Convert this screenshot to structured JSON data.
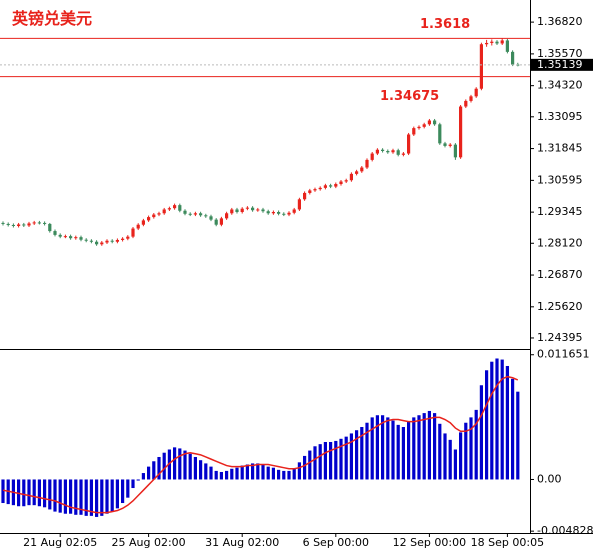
{
  "chart_data": {
    "type": "candlestick",
    "title": "英镑兑美元",
    "up_color": "#e8231c",
    "down_color": "#3c8a5c",
    "ylim": [
      1.24,
      1.3769
    ],
    "yticks": [
      {
        "value": 1.3682,
        "label": "1.36820"
      },
      {
        "value": 1.3557,
        "label": "1.35570"
      },
      {
        "value": 1.3432,
        "label": "1.34320"
      },
      {
        "value": 1.33095,
        "label": "1.33095"
      },
      {
        "value": 1.31845,
        "label": "1.31845"
      },
      {
        "value": 1.30595,
        "label": "1.30595"
      },
      {
        "value": 1.29345,
        "label": "1.29345"
      },
      {
        "value": 1.2812,
        "label": "1.28120"
      },
      {
        "value": 1.2687,
        "label": "1.26870"
      },
      {
        "value": 1.2562,
        "label": "1.25620"
      },
      {
        "value": 1.24395,
        "label": "1.24395"
      }
    ],
    "levels": [
      1.3618,
      1.34675
    ],
    "level_color": "#e8231c",
    "last_price": 1.35139,
    "x": [
      null,
      null,
      null,
      null,
      null,
      null,
      null,
      null,
      null,
      null,
      null,
      "21 Aug 02:05",
      null,
      null,
      null,
      null,
      null,
      null,
      null,
      null,
      null,
      null,
      null,
      null,
      null,
      null,
      null,
      null,
      "25 Aug 02:00",
      null,
      null,
      null,
      null,
      null,
      null,
      null,
      null,
      null,
      null,
      null,
      null,
      null,
      null,
      null,
      null,
      null,
      "31 Aug 02:00",
      null,
      null,
      null,
      null,
      null,
      null,
      null,
      null,
      null,
      null,
      null,
      null,
      null,
      null,
      null,
      null,
      null,
      "6 Sep 00:00",
      null,
      null,
      null,
      null,
      null,
      null,
      null,
      null,
      null,
      null,
      null,
      null,
      null,
      null,
      null,
      null,
      null,
      "12 Sep 00:00",
      null,
      null,
      null,
      null,
      null,
      null,
      null,
      null,
      null,
      null,
      null,
      null,
      null,
      null,
      "18 Sep 00:05",
      null,
      null
    ],
    "ohlc": [
      [
        1.2892,
        1.2898,
        1.2882,
        1.2888
      ],
      [
        1.2888,
        1.2894,
        1.2878,
        1.2884
      ],
      [
        1.2884,
        1.289,
        1.2874,
        1.288
      ],
      [
        1.288,
        1.2892,
        1.2874,
        1.2886
      ],
      [
        1.2886,
        1.2892,
        1.2876,
        1.2882
      ],
      [
        1.2882,
        1.2896,
        1.2876,
        1.289
      ],
      [
        1.289,
        1.29,
        1.2884,
        1.2894
      ],
      [
        1.2894,
        1.29,
        1.2886,
        1.2892
      ],
      [
        1.2892,
        1.2898,
        1.2882,
        1.2888
      ],
      [
        1.2888,
        1.2892,
        1.2854,
        1.286
      ],
      [
        1.286,
        1.2866,
        1.2839,
        1.2845
      ],
      [
        1.2845,
        1.2851,
        1.2832,
        1.2838
      ],
      [
        1.2838,
        1.2846,
        1.2832,
        1.284
      ],
      [
        1.284,
        1.2846,
        1.2826,
        1.2832
      ],
      [
        1.2832,
        1.2842,
        1.2826,
        1.2836
      ],
      [
        1.2836,
        1.2842,
        1.282,
        1.2826
      ],
      [
        1.2826,
        1.2832,
        1.2816,
        1.2822
      ],
      [
        1.2822,
        1.2828,
        1.2812,
        1.2818
      ],
      [
        1.2818,
        1.2824,
        1.2802,
        1.2808
      ],
      [
        1.2808,
        1.2821,
        1.2802,
        1.2815
      ],
      [
        1.2815,
        1.2828,
        1.2809,
        1.2822
      ],
      [
        1.2822,
        1.2828,
        1.2812,
        1.2818
      ],
      [
        1.2818,
        1.2831,
        1.2812,
        1.2825
      ],
      [
        1.2825,
        1.2836,
        1.2819,
        1.283
      ],
      [
        1.283,
        1.2844,
        1.2824,
        1.2838
      ],
      [
        1.2838,
        1.2876,
        1.2832,
        1.287
      ],
      [
        1.287,
        1.2891,
        1.2864,
        1.2885
      ],
      [
        1.2885,
        1.2908,
        1.2879,
        1.2902
      ],
      [
        1.2902,
        1.2921,
        1.2896,
        1.2915
      ],
      [
        1.2915,
        1.2931,
        1.2909,
        1.2925
      ],
      [
        1.2925,
        1.2936,
        1.2919,
        1.293
      ],
      [
        1.293,
        1.2951,
        1.2924,
        1.2945
      ],
      [
        1.2945,
        1.2956,
        1.2939,
        1.295
      ],
      [
        1.295,
        1.2968,
        1.2944,
        1.2962
      ],
      [
        1.2962,
        1.2968,
        1.2934,
        1.294
      ],
      [
        1.294,
        1.2946,
        1.2922,
        1.2928
      ],
      [
        1.2928,
        1.2934,
        1.2919,
        1.2925
      ],
      [
        1.2925,
        1.2936,
        1.2919,
        1.293
      ],
      [
        1.293,
        1.2936,
        1.2916,
        1.2922
      ],
      [
        1.2922,
        1.2928,
        1.2912,
        1.2918
      ],
      [
        1.2918,
        1.2924,
        1.2899,
        1.2905
      ],
      [
        1.2905,
        1.2911,
        1.2879,
        1.2885
      ],
      [
        1.2885,
        1.2916,
        1.2879,
        1.291
      ],
      [
        1.291,
        1.2936,
        1.2904,
        1.293
      ],
      [
        1.293,
        1.2951,
        1.2924,
        1.2945
      ],
      [
        1.2945,
        1.2951,
        1.2929,
        1.2935
      ],
      [
        1.2935,
        1.2954,
        1.2929,
        1.2948
      ],
      [
        1.2948,
        1.2958,
        1.2942,
        1.2952
      ],
      [
        1.2952,
        1.2958,
        1.2936,
        1.2942
      ],
      [
        1.2942,
        1.2951,
        1.2936,
        1.2945
      ],
      [
        1.2945,
        1.2951,
        1.2932,
        1.2938
      ],
      [
        1.2938,
        1.2944,
        1.2924,
        1.293
      ],
      [
        1.293,
        1.2941,
        1.2924,
        1.2935
      ],
      [
        1.2935,
        1.2941,
        1.2922,
        1.2928
      ],
      [
        1.2928,
        1.2934,
        1.2919,
        1.2925
      ],
      [
        1.2925,
        1.2938,
        1.2919,
        1.2932
      ],
      [
        1.2932,
        1.2951,
        1.2926,
        1.2945
      ],
      [
        1.2945,
        1.2991,
        1.2939,
        1.2985
      ],
      [
        1.2985,
        1.3016,
        1.2979,
        1.301
      ],
      [
        1.301,
        1.3026,
        1.3004,
        1.302
      ],
      [
        1.302,
        1.3031,
        1.3014,
        1.3025
      ],
      [
        1.3025,
        1.3036,
        1.3019,
        1.303
      ],
      [
        1.303,
        1.3046,
        1.3024,
        1.304
      ],
      [
        1.304,
        1.3046,
        1.3029,
        1.3035
      ],
      [
        1.3035,
        1.3051,
        1.3029,
        1.3045
      ],
      [
        1.3045,
        1.3061,
        1.3039,
        1.3055
      ],
      [
        1.3055,
        1.3066,
        1.3049,
        1.306
      ],
      [
        1.306,
        1.3091,
        1.3054,
        1.3085
      ],
      [
        1.3085,
        1.3101,
        1.3079,
        1.3095
      ],
      [
        1.3095,
        1.3116,
        1.3089,
        1.311
      ],
      [
        1.311,
        1.3146,
        1.3104,
        1.314
      ],
      [
        1.314,
        1.3171,
        1.3134,
        1.3165
      ],
      [
        1.3165,
        1.3186,
        1.3159,
        1.318
      ],
      [
        1.318,
        1.3186,
        1.3169,
        1.3175
      ],
      [
        1.3175,
        1.3181,
        1.3164,
        1.317
      ],
      [
        1.317,
        1.3184,
        1.3164,
        1.3178
      ],
      [
        1.3178,
        1.3184,
        1.3154,
        1.316
      ],
      [
        1.316,
        1.3171,
        1.3154,
        1.3165
      ],
      [
        1.3165,
        1.3246,
        1.3159,
        1.324
      ],
      [
        1.324,
        1.3271,
        1.3234,
        1.3265
      ],
      [
        1.3265,
        1.3276,
        1.3259,
        1.327
      ],
      [
        1.327,
        1.3286,
        1.3264,
        1.328
      ],
      [
        1.328,
        1.3301,
        1.3274,
        1.3295
      ],
      [
        1.3295,
        1.3301,
        1.3274,
        1.328
      ],
      [
        1.328,
        1.3286,
        1.3199,
        1.3205
      ],
      [
        1.3205,
        1.3211,
        1.3189,
        1.3195
      ],
      [
        1.3195,
        1.3206,
        1.3189,
        1.32
      ],
      [
        1.32,
        1.3206,
        1.314,
        1.315
      ],
      [
        1.315,
        1.3356,
        1.3144,
        1.335
      ],
      [
        1.335,
        1.3378,
        1.3344,
        1.3372
      ],
      [
        1.3372,
        1.3396,
        1.3366,
        1.339
      ],
      [
        1.339,
        1.3426,
        1.3384,
        1.342
      ],
      [
        1.342,
        1.3601,
        1.3414,
        1.3595
      ],
      [
        1.3595,
        1.3612,
        1.3585,
        1.36
      ],
      [
        1.36,
        1.3614,
        1.359,
        1.3605
      ],
      [
        1.3605,
        1.3611,
        1.3592,
        1.3598
      ],
      [
        1.3598,
        1.3618,
        1.3592,
        1.361
      ],
      [
        1.361,
        1.3616,
        1.3559,
        1.3565
      ],
      [
        1.3565,
        1.3571,
        1.3509,
        1.3515
      ],
      [
        1.3515,
        1.3522,
        1.3508,
        1.3514
      ]
    ],
    "indicator": {
      "type": "macd",
      "ylim": [
        -0.005,
        0.012
      ],
      "yticks": [
        0.011651,
        {
          "value": 0,
          "label": "0.00"
        },
        -0.004828
      ],
      "histogram_color": "#0000cc",
      "signal_color": "#e8231c",
      "histogram": [
        -0.0022,
        -0.0023,
        -0.0024,
        -0.0025,
        -0.0025,
        -0.0024,
        -0.0024,
        -0.0025,
        -0.0026,
        -0.0028,
        -0.003,
        -0.0031,
        -0.0032,
        -0.0032,
        -0.0033,
        -0.0033,
        -0.0034,
        -0.0034,
        -0.0035,
        -0.0034,
        -0.0032,
        -0.003,
        -0.0027,
        -0.0022,
        -0.0017,
        -0.0008,
        -0.0001,
        0.0006,
        0.0012,
        0.0017,
        0.0021,
        0.0025,
        0.0028,
        0.003,
        0.0029,
        0.0027,
        0.0024,
        0.0021,
        0.0018,
        0.0015,
        0.0012,
        0.0008,
        0.0007,
        0.0008,
        0.001,
        0.0011,
        0.0013,
        0.0014,
        0.0015,
        0.0015,
        0.0014,
        0.0012,
        0.0011,
        0.0009,
        0.0008,
        0.0008,
        0.001,
        0.0016,
        0.0022,
        0.0027,
        0.0031,
        0.0033,
        0.0035,
        0.0035,
        0.0036,
        0.0038,
        0.004,
        0.0043,
        0.0046,
        0.0049,
        0.0053,
        0.0058,
        0.006,
        0.006,
        0.0058,
        0.0055,
        0.0051,
        0.0049,
        0.0054,
        0.0058,
        0.006,
        0.0062,
        0.0064,
        0.0062,
        0.0052,
        0.0043,
        0.0037,
        0.0028,
        0.0044,
        0.0053,
        0.0058,
        0.0065,
        0.0088,
        0.0102,
        0.011,
        0.0113,
        0.0112,
        0.0106,
        0.0094,
        0.0082
      ],
      "signal": [
        -0.001,
        -0.0011,
        -0.0012,
        -0.0013,
        -0.0014,
        -0.0015,
        -0.0016,
        -0.0017,
        -0.0018,
        -0.0019,
        -0.002,
        -0.0022,
        -0.0024,
        -0.0026,
        -0.0027,
        -0.0028,
        -0.0029,
        -0.003,
        -0.0031,
        -0.0031,
        -0.0031,
        -0.003,
        -0.0029,
        -0.0027,
        -0.0024,
        -0.002,
        -0.0015,
        -0.001,
        -0.0005,
        0.0,
        0.0005,
        0.001,
        0.0015,
        0.0019,
        0.0022,
        0.0024,
        0.0025,
        0.0024,
        0.0023,
        0.0021,
        0.0019,
        0.0017,
        0.0015,
        0.0013,
        0.0012,
        0.0012,
        0.0012,
        0.0013,
        0.0013,
        0.0014,
        0.0014,
        0.0014,
        0.0013,
        0.0012,
        0.0011,
        0.001,
        0.001,
        0.0011,
        0.0013,
        0.0016,
        0.0019,
        0.0022,
        0.0025,
        0.0027,
        0.0029,
        0.0031,
        0.0033,
        0.0035,
        0.0038,
        0.0041,
        0.0044,
        0.0047,
        0.005,
        0.0053,
        0.0055,
        0.0056,
        0.0056,
        0.0055,
        0.0054,
        0.0054,
        0.0055,
        0.0056,
        0.0057,
        0.0058,
        0.0058,
        0.0056,
        0.0053,
        0.0048,
        0.0045,
        0.0045,
        0.0047,
        0.0052,
        0.006,
        0.007,
        0.008,
        0.0088,
        0.0094,
        0.0096,
        0.0095,
        0.0093
      ]
    }
  }
}
